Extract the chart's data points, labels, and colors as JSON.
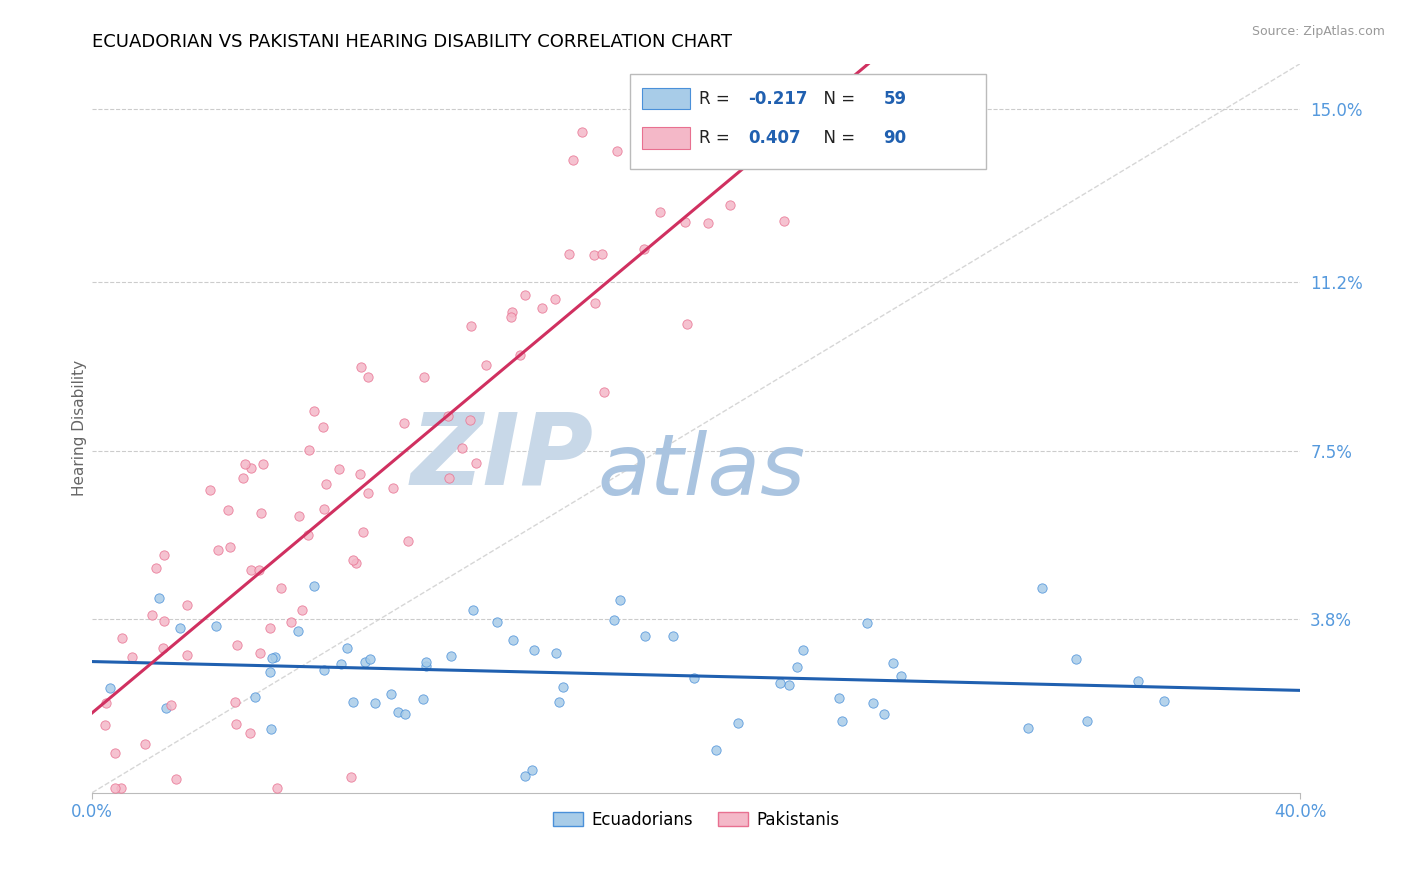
{
  "title": "ECUADORIAN VS PAKISTANI HEARING DISABILITY CORRELATION CHART",
  "source": "Source: ZipAtlas.com",
  "ylabel": "Hearing Disability",
  "xlim": [
    0.0,
    0.4
  ],
  "ylim": [
    0.0,
    0.16
  ],
  "ytick_vals": [
    0.038,
    0.075,
    0.112,
    0.15
  ],
  "ytick_labels": [
    "3.8%",
    "7.5%",
    "11.2%",
    "15.0%"
  ],
  "xtick_vals": [
    0.0,
    0.4
  ],
  "xtick_labels": [
    "0.0%",
    "40.0%"
  ],
  "blue_fill": "#a8cce8",
  "blue_edge": "#4a90d9",
  "blue_line": "#2060b0",
  "pink_fill": "#f4b8c8",
  "pink_edge": "#e87090",
  "pink_line": "#d03060",
  "diag_color": "#cccccc",
  "grid_color": "#cccccc",
  "R_blue": -0.217,
  "N_blue": 59,
  "R_pink": 0.407,
  "N_pink": 90,
  "legend_label_blue": "Ecuadorians",
  "legend_label_pink": "Pakistanis",
  "title_fontsize": 13,
  "tick_color": "#5599dd",
  "watermark_zip_color": "#c8d8e8",
  "watermark_atlas_color": "#aac4e0"
}
